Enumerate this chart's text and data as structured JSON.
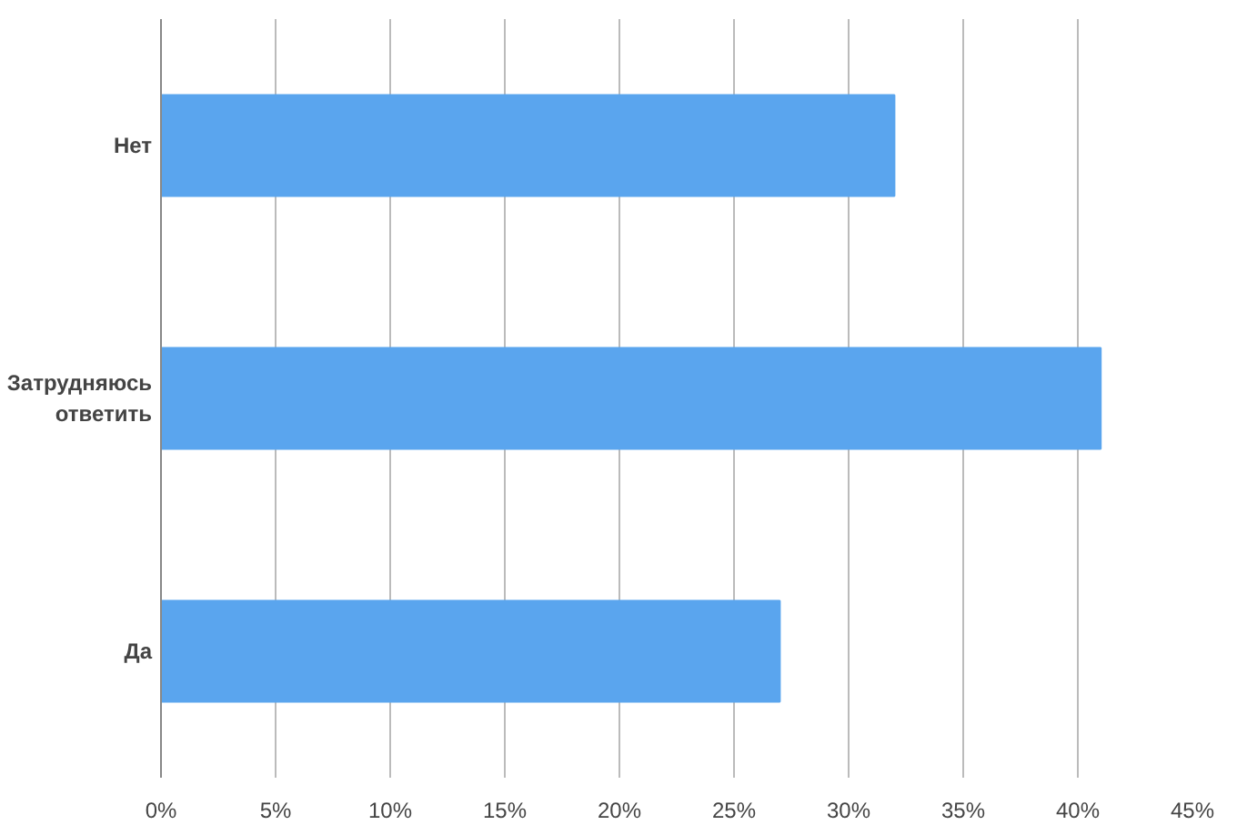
{
  "chart_data": {
    "type": "bar",
    "orientation": "horizontal",
    "categories": [
      "Нет",
      "Затрудняюсь ответить",
      "Да"
    ],
    "values": [
      32,
      41,
      27
    ],
    "color": "#5aa5ee",
    "xlim": [
      0,
      45
    ],
    "xticks": [
      {
        "value": 0,
        "label": "0%"
      },
      {
        "value": 5,
        "label": "5%"
      },
      {
        "value": 10,
        "label": "10%"
      },
      {
        "value": 15,
        "label": "15%"
      },
      {
        "value": 20,
        "label": "20%"
      },
      {
        "value": 25,
        "label": "25%"
      },
      {
        "value": 30,
        "label": "30%"
      },
      {
        "value": 35,
        "label": "35%"
      },
      {
        "value": 40,
        "label": "40%"
      },
      {
        "value": 45,
        "label": "45%"
      }
    ],
    "grid": "x"
  }
}
